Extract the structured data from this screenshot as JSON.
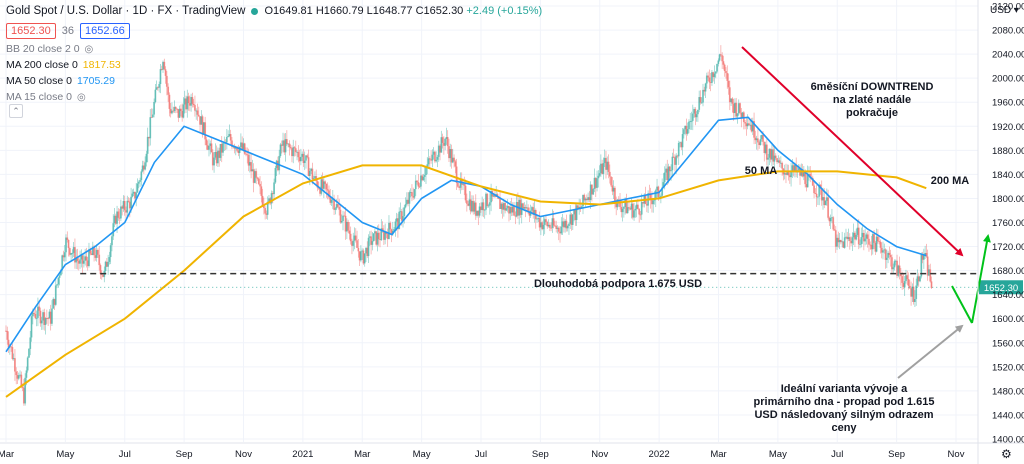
{
  "header": {
    "title": "Gold Spot / U.S. Dollar · 1D · FX · TradingView",
    "ohlc": {
      "o": "O1649.81",
      "h": "H1660.79",
      "l": "L1648.77",
      "c": "C1652.30",
      "chg": "+2.49 (+0.15%)"
    },
    "bid": "1652.30",
    "spread": "36",
    "ask": "1652.66"
  },
  "indicators": [
    {
      "label": "BB 20 close 2 0",
      "value": "",
      "color": "#787b86"
    },
    {
      "label": "MA 200 close 0",
      "value": "1817.53",
      "color": "#f0b400"
    },
    {
      "label": "MA 50 close 0",
      "value": "1705.29",
      "color": "#2196f3"
    },
    {
      "label": "MA 15 close 0",
      "value": "",
      "color": "#b2b5be"
    }
  ],
  "currency_label": "USD",
  "annotations": {
    "downtrend": [
      "6měsíční DOWNTREND",
      "na zlaté nadále",
      "pokračuje"
    ],
    "ma50": "50 MA",
    "ma200": "200 MA",
    "support": "Dlouhodobá podpora 1.675 USD",
    "scenario": [
      "Ideální varianta vývoje a",
      "primárního dna - propad pod 1.615",
      "USD následovaný silným odrazem",
      "ceny"
    ]
  },
  "chart_data": {
    "type": "candlestick",
    "y_ticks": [
      1400,
      1440,
      1480,
      1520,
      1560,
      1600,
      1640,
      1680,
      1720,
      1760,
      1800,
      1840,
      1880,
      1920,
      1960,
      2000,
      2040,
      2080,
      2120
    ],
    "ylim": [
      1395,
      2130
    ],
    "x_ticks": [
      "Mar",
      "May",
      "Jul",
      "Sep",
      "Nov",
      "2021",
      "Mar",
      "May",
      "Jul",
      "Sep",
      "Nov",
      "2022",
      "Mar",
      "May",
      "Jul",
      "Sep",
      "Nov"
    ],
    "x_tick_pos": [
      0,
      2,
      4,
      6,
      8,
      10,
      12,
      14,
      16,
      18,
      20,
      22,
      24,
      26,
      28,
      30,
      32
    ],
    "x_range_months": [
      0,
      32
    ],
    "last_price": "1652.30",
    "support_level": 1675,
    "price_anchors": [
      [
        0,
        1580
      ],
      [
        0.6,
        1470
      ],
      [
        0.9,
        1610
      ],
      [
        1.5,
        1600
      ],
      [
        2.0,
        1730
      ],
      [
        2.5,
        1690
      ],
      [
        3.0,
        1710
      ],
      [
        3.3,
        1670
      ],
      [
        3.7,
        1770
      ],
      [
        4.3,
        1800
      ],
      [
        4.6,
        1850
      ],
      [
        5.0,
        1960
      ],
      [
        5.3,
        2040
      ],
      [
        5.5,
        1950
      ],
      [
        5.8,
        1940
      ],
      [
        6.3,
        1970
      ],
      [
        7.0,
        1860
      ],
      [
        7.5,
        1900
      ],
      [
        8.0,
        1880
      ],
      [
        8.8,
        1780
      ],
      [
        9.3,
        1890
      ],
      [
        10.0,
        1870
      ],
      [
        10.4,
        1830
      ],
      [
        11.0,
        1800
      ],
      [
        11.6,
        1740
      ],
      [
        12.0,
        1700
      ],
      [
        12.3,
        1730
      ],
      [
        12.7,
        1740
      ],
      [
        13.2,
        1760
      ],
      [
        14.0,
        1840
      ],
      [
        14.8,
        1900
      ],
      [
        15.3,
        1820
      ],
      [
        15.8,
        1780
      ],
      [
        16.3,
        1800
      ],
      [
        17.0,
        1780
      ],
      [
        17.5,
        1790
      ],
      [
        18.0,
        1760
      ],
      [
        18.6,
        1750
      ],
      [
        19.3,
        1780
      ],
      [
        20.2,
        1860
      ],
      [
        20.6,
        1790
      ],
      [
        21.2,
        1780
      ],
      [
        22.0,
        1810
      ],
      [
        22.8,
        1900
      ],
      [
        23.5,
        1980
      ],
      [
        24.1,
        2040
      ],
      [
        24.4,
        1960
      ],
      [
        25.0,
        1930
      ],
      [
        25.6,
        1880
      ],
      [
        26.1,
        1850
      ],
      [
        26.8,
        1840
      ],
      [
        27.6,
        1800
      ],
      [
        28.0,
        1720
      ],
      [
        28.6,
        1740
      ],
      [
        29.5,
        1720
      ],
      [
        30.3,
        1660
      ],
      [
        30.6,
        1640
      ],
      [
        30.9,
        1710
      ],
      [
        31.2,
        1652
      ]
    ],
    "series": [
      {
        "name": "MA 50 close 0",
        "color": "#2196f3",
        "points": [
          [
            0,
            1545
          ],
          [
            1,
            1620
          ],
          [
            2,
            1690
          ],
          [
            3,
            1720
          ],
          [
            4,
            1760
          ],
          [
            5,
            1860
          ],
          [
            6,
            1920
          ],
          [
            7,
            1900
          ],
          [
            8,
            1880
          ],
          [
            9,
            1860
          ],
          [
            10,
            1840
          ],
          [
            11,
            1800
          ],
          [
            12,
            1760
          ],
          [
            13,
            1740
          ],
          [
            14,
            1800
          ],
          [
            15,
            1830
          ],
          [
            16,
            1820
          ],
          [
            17,
            1790
          ],
          [
            18,
            1770
          ],
          [
            19,
            1780
          ],
          [
            20,
            1790
          ],
          [
            21,
            1800
          ],
          [
            22,
            1810
          ],
          [
            23,
            1870
          ],
          [
            24,
            1930
          ],
          [
            25,
            1935
          ],
          [
            26,
            1880
          ],
          [
            27,
            1840
          ],
          [
            28,
            1790
          ],
          [
            29,
            1750
          ],
          [
            30,
            1720
          ],
          [
            31,
            1705
          ]
        ]
      },
      {
        "name": "MA 200 close 0",
        "color": "#f0b400",
        "points": [
          [
            0,
            1470
          ],
          [
            2,
            1540
          ],
          [
            4,
            1600
          ],
          [
            6,
            1680
          ],
          [
            8,
            1770
          ],
          [
            10,
            1825
          ],
          [
            12,
            1855
          ],
          [
            14,
            1855
          ],
          [
            16,
            1820
          ],
          [
            18,
            1795
          ],
          [
            20,
            1790
          ],
          [
            22,
            1800
          ],
          [
            24,
            1830
          ],
          [
            26,
            1845
          ],
          [
            28,
            1845
          ],
          [
            30,
            1835
          ],
          [
            31,
            1817
          ]
        ]
      }
    ]
  }
}
